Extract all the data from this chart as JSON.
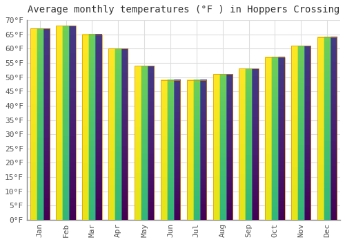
{
  "title": "Average monthly temperatures (°F ) in Hoppers Crossing",
  "months": [
    "Jan",
    "Feb",
    "Mar",
    "Apr",
    "May",
    "Jun",
    "Jul",
    "Aug",
    "Sep",
    "Oct",
    "Nov",
    "Dec"
  ],
  "values": [
    67,
    68,
    65,
    60,
    54,
    49,
    49,
    51,
    53,
    57,
    61,
    64
  ],
  "bar_color_top": "#FFC72C",
  "bar_color_bottom": "#F5A800",
  "bar_edge_color": "#E09000",
  "ylim": [
    0,
    70
  ],
  "ytick_step": 5,
  "background_color": "#FFFFFF",
  "plot_bg_color": "#FFFFFF",
  "grid_color": "#DDDDDD",
  "title_fontsize": 10,
  "tick_fontsize": 8,
  "ylabel_suffix": "°F",
  "spine_color": "#888888"
}
